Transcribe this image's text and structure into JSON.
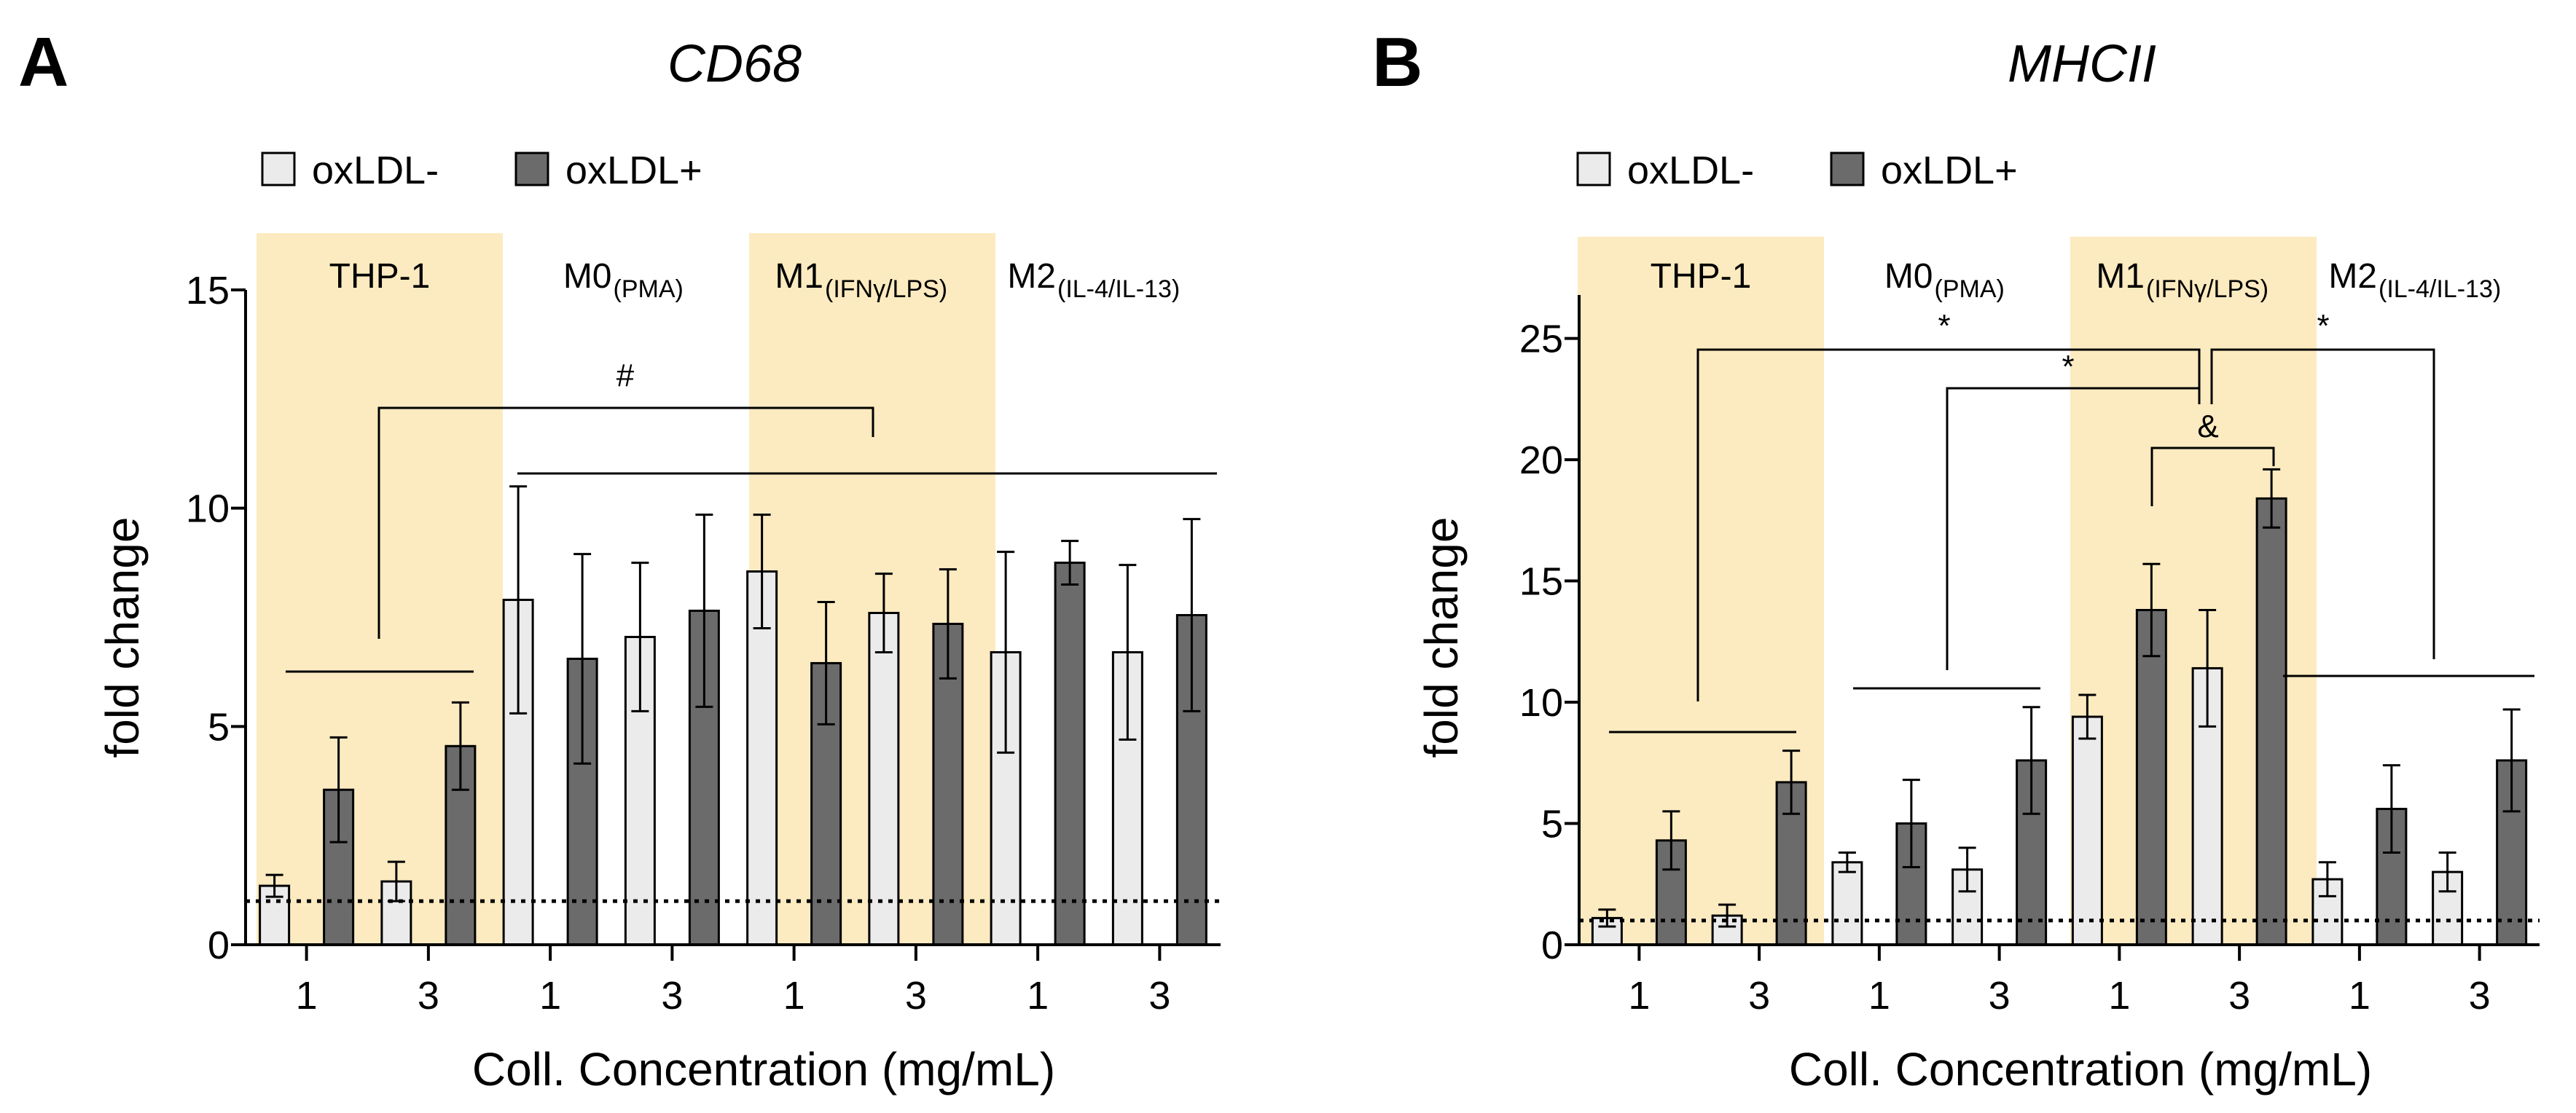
{
  "legend": {
    "items": [
      "oxLDL-",
      "oxLDL+"
    ]
  },
  "chart_data": [
    {
      "type": "bar",
      "panel": "A",
      "title": "CD68",
      "xlabel": "Coll. Concentration (mg/mL)",
      "ylabel": "fold change",
      "ylim": [
        0,
        15
      ],
      "yticks": [
        "0",
        "5",
        "10",
        "15"
      ],
      "groups": [
        {
          "label": "THP-1",
          "sub": "",
          "highlight": true
        },
        {
          "label": "M0",
          "sub": "(PMA)",
          "highlight": false
        },
        {
          "label": "M1",
          "sub": "(IFNγ/LPS)",
          "highlight": true
        },
        {
          "label": "M2",
          "sub": "(IL-4/IL-13)",
          "highlight": false
        }
      ],
      "categories": [
        "1",
        "3",
        "1",
        "3",
        "1",
        "3",
        "1",
        "3"
      ],
      "series": [
        {
          "name": "oxLDL-",
          "values": [
            1.35,
            1.45,
            7.9,
            7.05,
            8.55,
            7.6,
            6.7,
            6.7
          ],
          "errors": [
            0.25,
            0.45,
            2.6,
            1.7,
            1.3,
            0.9,
            2.3,
            2.0
          ]
        },
        {
          "name": "oxLDL+",
          "values": [
            3.55,
            4.55,
            6.55,
            7.65,
            6.45,
            7.35,
            8.75,
            7.55
          ],
          "errors": [
            1.2,
            1.0,
            2.4,
            2.2,
            1.4,
            1.25,
            0.5,
            2.2
          ]
        }
      ],
      "reference_line": 1,
      "annotations": [
        "#"
      ]
    },
    {
      "type": "bar",
      "panel": "B",
      "title": "MHCII",
      "xlabel": "Coll. Concentration (mg/mL)",
      "ylabel": "fold change",
      "ylim": [
        0,
        27
      ],
      "yticks": [
        "0",
        "5",
        "10",
        "15",
        "20",
        "25"
      ],
      "groups": [
        {
          "label": "THP-1",
          "sub": "",
          "highlight": true
        },
        {
          "label": "M0",
          "sub": "(PMA)",
          "highlight": false
        },
        {
          "label": "M1",
          "sub": "(IFNγ/LPS)",
          "highlight": true
        },
        {
          "label": "M2",
          "sub": "(IL-4/IL-13)",
          "highlight": false
        }
      ],
      "categories": [
        "1",
        "3",
        "1",
        "3",
        "1",
        "3",
        "1",
        "3"
      ],
      "series": [
        {
          "name": "oxLDL-",
          "values": [
            1.1,
            1.2,
            3.4,
            3.1,
            9.4,
            11.4,
            2.7,
            3.0
          ],
          "errors": [
            0.35,
            0.45,
            0.4,
            0.9,
            0.9,
            2.4,
            0.7,
            0.8
          ]
        },
        {
          "name": "oxLDL+",
          "values": [
            4.3,
            6.7,
            5.0,
            7.6,
            13.8,
            18.4,
            5.6,
            7.6
          ],
          "errors": [
            1.2,
            1.3,
            1.8,
            2.2,
            1.9,
            1.2,
            1.8,
            2.1
          ]
        }
      ],
      "reference_line": 1,
      "annotations": [
        "*",
        "*",
        "*",
        "&"
      ]
    }
  ]
}
